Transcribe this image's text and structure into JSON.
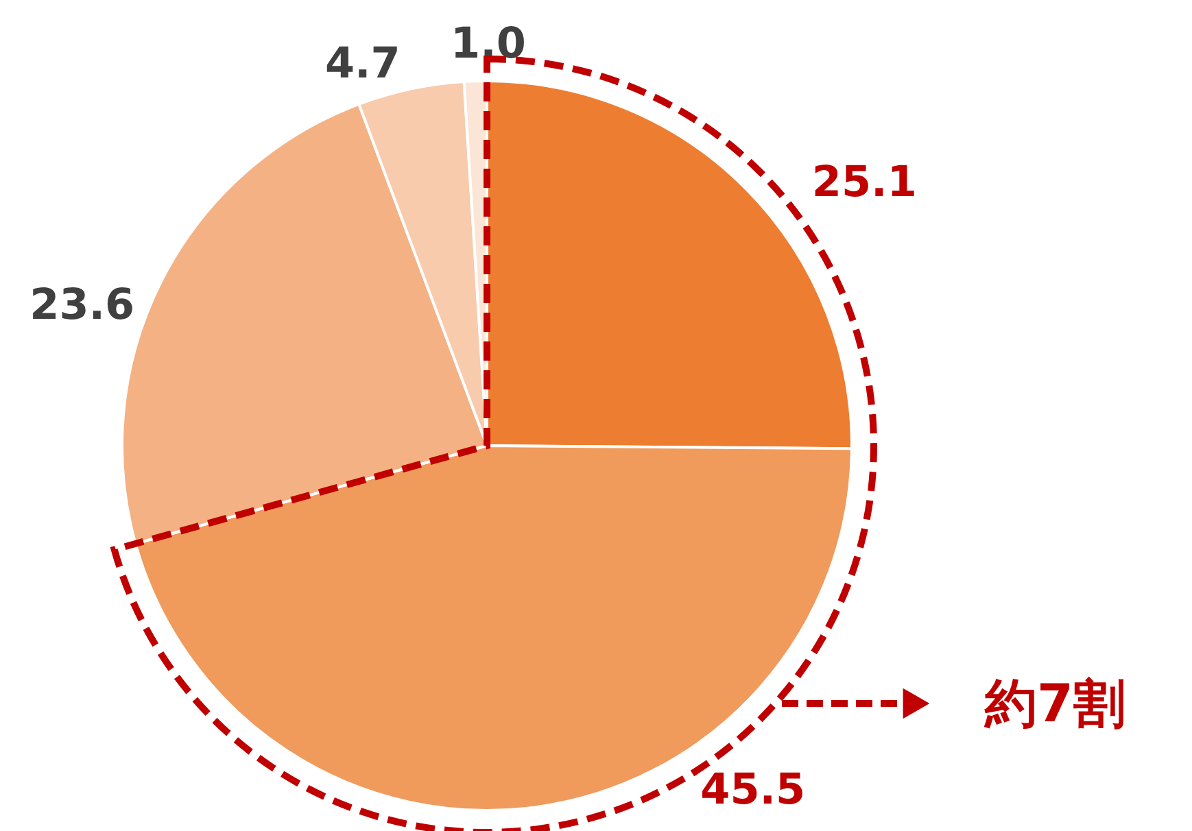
{
  "chart_data": {
    "type": "pie",
    "categories": [
      null,
      null,
      null,
      null,
      null
    ],
    "values": [
      25.1,
      45.5,
      23.6,
      4.7,
      1.0
    ],
    "colors": [
      "#ed7d31",
      "#f09a5c",
      "#f4b183",
      "#f8cbad",
      "#fbe5d6"
    ],
    "value_labels": [
      "25.1",
      "45.5",
      "23.6",
      "4.7",
      "1.0"
    ],
    "annotations": [
      "約7割"
    ]
  }
}
